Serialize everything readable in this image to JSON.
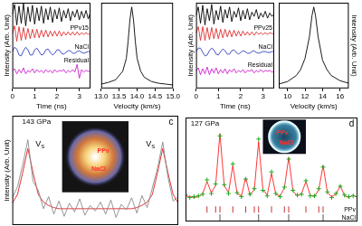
{
  "chart_data": [
    {
      "type": "line",
      "x": [
        0,
        0.1,
        0.2,
        0.3,
        0.4,
        0.5,
        0.6,
        0.7,
        0.8,
        0.9,
        1,
        1.1,
        1.2,
        1.3,
        1.4,
        1.5,
        1.6,
        1.7,
        1.8,
        1.9,
        2,
        2.1,
        2.2,
        2.3,
        2.4,
        2.5,
        2.6,
        2.7,
        2.8,
        2.9,
        3,
        3.1,
        3.2,
        3.3,
        3.4,
        3.5
      ],
      "xlim": [
        0,
        3.5
      ],
      "xticks": [
        0,
        1,
        2,
        3
      ],
      "ylim": [
        0,
        10
      ],
      "x_label": "Time (ns)",
      "y_label": "Intensity (Arb. Unit)",
      "tick_labels": "x",
      "series": [
        {
          "color": "#000000",
          "values": [
            8.6,
            9.8,
            7.4,
            9.6,
            7.6,
            9.9,
            7.3,
            9.5,
            7.8,
            9.7,
            7.5,
            9.4,
            7.9,
            9.6,
            7.6,
            9.3,
            8.0,
            9.5,
            7.7,
            9.2,
            8.1,
            9.4,
            7.8,
            9.1,
            8.2,
            9.3,
            7.9,
            9.0,
            8.3,
            9.2,
            8.0,
            9.0,
            8.2,
            9.1,
            8.1,
            8.9
          ]
        },
        {
          "name": "PPv15",
          "color": "#e03030",
          "values": [
            6.4,
            7.3,
            5.5,
            7.2,
            5.6,
            7.1,
            5.7,
            7.0,
            5.8,
            6.9,
            5.9,
            6.9,
            5.9,
            6.8,
            6.0,
            6.8,
            6.0,
            6.7,
            6.1,
            6.7,
            6.1,
            6.7,
            6.1,
            6.6,
            6.2,
            6.6,
            6.2,
            6.6,
            6.2,
            6.6,
            6.2,
            6.5,
            6.3,
            6.5,
            6.3,
            6.5
          ]
        },
        {
          "name": "NaCl",
          "color": "#3040c0",
          "values": [
            4.3,
            4.8,
            4.6,
            3.9,
            3.8,
            4.4,
            4.8,
            4.5,
            3.9,
            3.9,
            4.5,
            4.7,
            4.3,
            3.9,
            4.0,
            4.5,
            4.6,
            4.2,
            3.9,
            4.1,
            4.5,
            4.5,
            4.1,
            4.0,
            4.2,
            4.4,
            4.4,
            4.1,
            4.1,
            4.3,
            4.4,
            4.2,
            4.1,
            4.2,
            4.3,
            4.3
          ]
        },
        {
          "name": "Residual",
          "color": "#d020d0",
          "values": [
            2.0,
            2.3,
            1.7,
            2.2,
            1.8,
            2.4,
            1.7,
            2.1,
            1.9,
            2.3,
            1.8,
            2.2,
            1.9,
            2.1,
            1.8,
            2.2,
            1.9,
            2.1,
            1.8,
            2.2,
            1.9,
            2.1,
            2.0,
            2.2,
            1.8,
            2.1,
            1.9,
            2.2,
            1.9,
            2.8,
            1.2,
            2.2,
            1.9,
            2.1,
            2.0,
            2.0
          ]
        }
      ]
    },
    {
      "type": "line",
      "x": [
        13.0,
        13.2,
        13.4,
        13.6,
        13.7,
        13.75,
        13.8,
        13.85,
        13.9,
        13.95,
        14.0,
        14.1,
        14.2,
        14.4,
        14.6,
        14.8,
        15.0
      ],
      "xlim": [
        13,
        15
      ],
      "xticks": [
        {
          "value": 13,
          "label": "13.0"
        },
        {
          "value": 13.5,
          "label": "13.5"
        },
        {
          "value": 14,
          "label": "14.0"
        },
        {
          "value": 14.5,
          "label": "14.5"
        },
        {
          "value": 15,
          "label": "15.0"
        }
      ],
      "ylim": [
        0,
        10
      ],
      "x_label": "Velocity (km/s)",
      "tick_labels": "x",
      "series": [
        {
          "color": "#000000",
          "values": [
            0.5,
            0.7,
            1.0,
            2.0,
            3.5,
            5.5,
            8.0,
            9.5,
            8.0,
            5.5,
            3.5,
            2.0,
            1.3,
            0.8,
            0.6,
            0.5,
            0.4
          ]
        }
      ]
    },
    {
      "type": "line",
      "x": [
        0,
        0.1,
        0.2,
        0.3,
        0.4,
        0.5,
        0.6,
        0.7,
        0.8,
        0.9,
        1,
        1.1,
        1.2,
        1.3,
        1.4,
        1.5,
        1.6,
        1.7,
        1.8,
        1.9,
        2,
        2.1,
        2.2,
        2.3,
        2.4,
        2.5,
        2.6,
        2.7,
        2.8,
        2.9,
        3,
        3.1,
        3.2,
        3.3,
        3.4,
        3.5
      ],
      "xlim": [
        0,
        3.5
      ],
      "xticks": [
        0,
        1,
        2,
        3
      ],
      "ylim": [
        0,
        10
      ],
      "x_label": "Time (ns)",
      "y_label": "Intensity (Arb. Unit)",
      "tick_labels": "x",
      "series": [
        {
          "color": "#000000",
          "values": [
            8.5,
            9.5,
            7.6,
            9.7,
            7.4,
            9.3,
            7.9,
            9.8,
            7.5,
            9.1,
            8.0,
            9.6,
            7.7,
            9.2,
            8.2,
            9.5,
            7.8,
            9.0,
            8.3,
            9.4,
            7.9,
            9.1,
            8.1,
            9.3,
            8.0,
            8.9,
            8.4,
            9.2,
            8.1,
            8.8,
            8.3,
            9.0,
            8.2,
            8.8,
            8.4,
            8.7
          ]
        },
        {
          "name": "PPv25",
          "color": "#e03030",
          "values": [
            6.4,
            7.2,
            5.6,
            7.2,
            5.6,
            7.1,
            5.7,
            7.1,
            5.8,
            7.0,
            5.8,
            6.9,
            5.9,
            6.9,
            6.0,
            6.8,
            6.0,
            6.8,
            6.1,
            6.7,
            6.1,
            6.7,
            6.2,
            6.6,
            6.2,
            6.6,
            6.2,
            6.6,
            6.3,
            6.5,
            6.3,
            6.5,
            6.3,
            6.5,
            6.4,
            6.4
          ]
        },
        {
          "name": "NaCl",
          "color": "#3040c0",
          "values": [
            4.3,
            4.7,
            4.7,
            4.2,
            3.8,
            3.9,
            4.4,
            4.7,
            4.5,
            4.0,
            3.9,
            4.3,
            4.6,
            4.4,
            4.0,
            4.0,
            4.4,
            4.5,
            4.2,
            4.0,
            4.2,
            4.4,
            4.3,
            4.1,
            4.1,
            4.3,
            4.4,
            4.2,
            4.1,
            4.2,
            4.3,
            4.3,
            4.2,
            4.2,
            4.3,
            4.3
          ]
        },
        {
          "name": "Residual",
          "color": "#d020d0",
          "values": [
            2.0,
            2.4,
            1.6,
            2.3,
            1.7,
            2.5,
            1.6,
            2.3,
            1.8,
            2.4,
            1.7,
            2.2,
            1.8,
            2.3,
            1.7,
            2.2,
            1.9,
            2.3,
            1.8,
            2.1,
            1.9,
            2.2,
            1.8,
            2.1,
            2.0,
            2.2,
            1.8,
            2.1,
            1.9,
            2.2,
            1.9,
            2.1,
            2.0,
            2.1,
            1.9,
            2.0
          ]
        }
      ]
    },
    {
      "type": "line",
      "x": [
        9,
        10,
        11,
        11.5,
        12,
        12.5,
        12.8,
        13,
        13.2,
        13.5,
        14,
        14.5,
        15,
        16,
        17
      ],
      "xlim": [
        9,
        17
      ],
      "xticks": [
        10,
        12,
        14,
        16
      ],
      "ylim": [
        0,
        10
      ],
      "x_label": "Velocity (km/s)",
      "y_label": "Intensity (Arb. Unit)",
      "tick_labels": "x",
      "series": [
        {
          "color": "#000000",
          "values": [
            0.5,
            0.8,
            1.5,
            2.2,
            3.5,
            6.0,
            8.5,
            9.5,
            8.5,
            6.0,
            3.3,
            2.2,
            1.5,
            0.9,
            0.6
          ]
        }
      ]
    },
    {
      "type": "line",
      "x": [
        -8,
        -7.5,
        -7,
        -6.5,
        -6,
        -5.5,
        -5,
        -4.5,
        -4,
        -3.5,
        -3,
        -2.5,
        -2,
        -1.5,
        -1,
        -0.5,
        0,
        0.5,
        1,
        1.5,
        2,
        2.5,
        3,
        3.5,
        4,
        4.5,
        5,
        5.5,
        6,
        6.5,
        7,
        7.5,
        8
      ],
      "xlim": [
        -8,
        8
      ],
      "ylim": [
        0,
        10
      ],
      "y_label": "Intensity (Arb. Unit)",
      "tick_labels": false,
      "annotations": [
        "c",
        "143 GPa",
        "VS",
        "VS"
      ],
      "inset_labels": [
        "PPv",
        "NaCl"
      ],
      "series": [
        {
          "color": "#8a8a8a",
          "values": [
            2.5,
            3.5,
            5.5,
            7.8,
            4.0,
            3.2,
            1.5,
            2.6,
            1.0,
            2.2,
            0.8,
            2.0,
            1.2,
            2.4,
            0.9,
            1.8,
            1.3,
            2.1,
            1.0,
            2.3,
            0.7,
            1.9,
            1.4,
            2.5,
            1.1,
            2.7,
            1.6,
            3.4,
            5.2,
            7.6,
            4.4,
            2.2,
            2.6
          ]
        },
        {
          "color": "#e02020",
          "values": [
            2.0,
            2.8,
            4.8,
            7.0,
            4.8,
            2.8,
            2.1,
            1.8,
            1.6,
            1.5,
            1.5,
            1.5,
            1.5,
            1.5,
            1.5,
            1.5,
            1.5,
            1.5,
            1.5,
            1.5,
            1.5,
            1.5,
            1.5,
            1.5,
            1.6,
            1.8,
            2.1,
            2.8,
            4.8,
            7.0,
            4.8,
            2.8,
            2.0
          ]
        }
      ]
    },
    {
      "type": "line",
      "x": [
        5,
        5.5,
        6,
        6.5,
        7,
        7.5,
        8,
        8.5,
        9,
        9.5,
        10,
        10.5,
        11,
        11.5,
        12,
        12.5,
        13,
        13.5,
        14,
        14.5,
        15,
        15.5,
        16,
        16.5,
        17,
        17.5,
        18,
        18.5,
        19,
        19.5,
        20,
        20.5,
        21,
        21.5,
        22,
        22.5,
        23,
        23.5,
        24,
        24.5,
        25
      ],
      "xlim": [
        5,
        25
      ],
      "ylim": [
        -2,
        11
      ],
      "tick_labels": false,
      "annotations": [
        "d",
        "127 GPa"
      ],
      "inset_labels": [
        "PPv",
        "NaCl"
      ],
      "series": [
        {
          "color": "#22aa22",
          "marker": "cross",
          "line_style": "none",
          "values": [
            1.3,
            1.0,
            1.1,
            1.2,
            1.4,
            3.2,
            1.5,
            2.7,
            8.7,
            2.6,
            1.5,
            5.2,
            1.6,
            1.1,
            3.3,
            1.4,
            2.1,
            8.3,
            1.9,
            1.2,
            4.2,
            1.5,
            1.1,
            2.3,
            5.8,
            1.9,
            1.3,
            1.4,
            3.1,
            1.2,
            1.2,
            2.1,
            4.8,
            1.7,
            1.0,
            1.5,
            2.4,
            1.3,
            1.1,
            1.2,
            1.1
          ]
        },
        {
          "color": "#ff2020",
          "values": [
            1.2,
            1.1,
            1.0,
            1.1,
            1.5,
            3.0,
            1.6,
            2.5,
            9.0,
            2.5,
            1.6,
            5.0,
            1.5,
            1.2,
            3.5,
            1.3,
            2.0,
            8.0,
            2.0,
            1.3,
            4.0,
            1.4,
            1.2,
            2.2,
            6.0,
            1.8,
            1.2,
            1.5,
            3.0,
            1.3,
            1.1,
            2.0,
            5.0,
            1.6,
            1.1,
            1.4,
            2.5,
            1.2,
            1.0,
            1.3,
            1.0
          ]
        },
        {
          "name": "PPv",
          "color": "#cc3333",
          "marker": "vline",
          "line_style": "none",
          "x": [
            7.5,
            8.5,
            9,
            10.5,
            12,
            13,
            13.5,
            15,
            16.5,
            17,
            19,
            20.5,
            21
          ],
          "values": [
            -0.5,
            -0.5,
            -0.5,
            -0.5,
            -0.5,
            -0.5,
            -0.5,
            -0.5,
            -0.5,
            -0.5,
            -0.5,
            -0.5,
            -0.5
          ]
        },
        {
          "name": "NaCl",
          "color": "#555555",
          "marker": "vline",
          "line_style": "none",
          "x": [
            9,
            13.5,
            17,
            21
          ],
          "values": [
            -1.5,
            -1.5,
            -1.5,
            -1.5
          ]
        }
      ]
    }
  ]
}
